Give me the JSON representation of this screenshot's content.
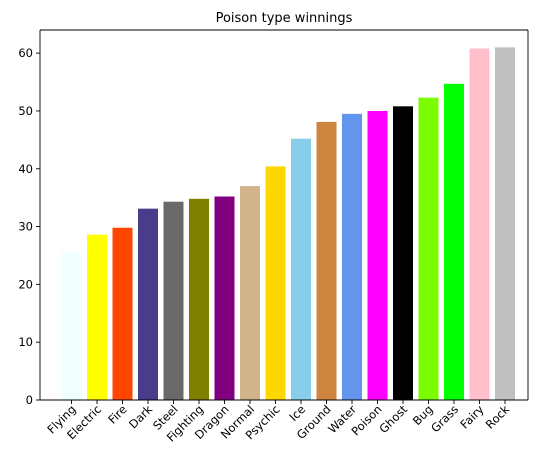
{
  "chart_data": {
    "type": "bar",
    "title": "Poison type winnings",
    "xlabel": "",
    "ylabel": "",
    "ylim": [
      0,
      64
    ],
    "yticks": [
      0,
      10,
      20,
      30,
      40,
      50,
      60
    ],
    "grid": false,
    "categories": [
      "Flying",
      "Electric",
      "Fire",
      "Dark",
      "Steel",
      "Fighting",
      "Dragon",
      "Normal",
      "Psychic",
      "Ice",
      "Ground",
      "Water",
      "Poison",
      "Ghost",
      "Bug",
      "Grass",
      "Fairy",
      "Rock"
    ],
    "values": [
      25.5,
      28.6,
      29.8,
      33.1,
      34.3,
      34.8,
      35.2,
      37.0,
      40.4,
      45.2,
      48.1,
      49.5,
      50.0,
      50.8,
      52.3,
      54.7,
      60.8,
      61.0
    ],
    "colors": [
      "#F0FFFF",
      "#FFFF00",
      "#FF4500",
      "#483D8B",
      "#696969",
      "#808000",
      "#800080",
      "#D2B48C",
      "#FFD700",
      "#87CEEB",
      "#CD853F",
      "#6495ED",
      "#FF00FF",
      "#000000",
      "#7CFC00",
      "#00FF00",
      "#FFC0CB",
      "#C0C0C0"
    ]
  }
}
